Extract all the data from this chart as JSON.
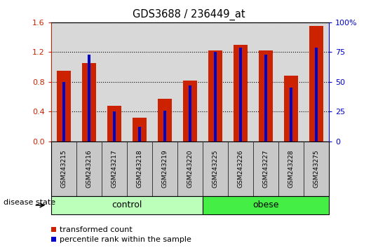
{
  "title": "GDS3688 / 236449_at",
  "samples": [
    "GSM243215",
    "GSM243216",
    "GSM243217",
    "GSM243218",
    "GSM243219",
    "GSM243220",
    "GSM243225",
    "GSM243226",
    "GSM243227",
    "GSM243228",
    "GSM243275"
  ],
  "red_values": [
    0.95,
    1.05,
    0.48,
    0.32,
    0.57,
    0.82,
    1.22,
    1.3,
    1.22,
    0.88,
    1.55
  ],
  "blue_values": [
    50,
    73,
    25,
    12,
    26,
    47,
    75,
    79,
    73,
    45,
    79
  ],
  "left_ylim": [
    0,
    1.6
  ],
  "right_ylim": [
    0,
    100
  ],
  "left_yticks": [
    0,
    0.4,
    0.8,
    1.2,
    1.6
  ],
  "right_yticks": [
    0,
    25,
    50,
    75,
    100
  ],
  "right_yticklabels": [
    "0",
    "25",
    "50",
    "75",
    "100%"
  ],
  "bar_color": "#cc2200",
  "blue_color": "#0000cc",
  "n_control": 6,
  "n_obese": 5,
  "control_label": "control",
  "obese_label": "obese",
  "disease_label": "disease state",
  "legend_red": "transformed count",
  "legend_blue": "percentile rank within the sample",
  "bg_color": "#ffffff",
  "plot_bg_color": "#d8d8d8",
  "tick_bg_color": "#c8c8c8",
  "control_band_color": "#bbffbb",
  "obese_band_color": "#44ee44",
  "bar_width": 0.55
}
